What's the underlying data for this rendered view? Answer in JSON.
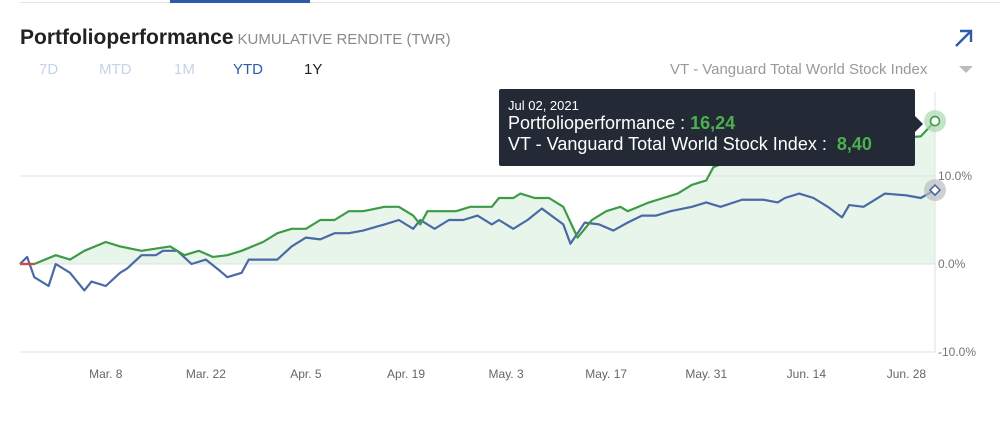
{
  "header": {
    "title": "Portfolioperformance",
    "subtitle": "KUMULATIVE RENDITE (TWR)",
    "benchmark": "VT - Vanguard Total World Stock Index",
    "expand_icon": "arrow-up-right-icon"
  },
  "ranges": [
    {
      "label": "7D",
      "color": "#c5d3e8"
    },
    {
      "label": "MTD",
      "color": "#c5d3e8"
    },
    {
      "label": "1M",
      "color": "#c5d3e8"
    },
    {
      "label": "YTD",
      "color": "#2f5aa8"
    },
    {
      "label": "1Y",
      "color": "#222222"
    }
  ],
  "selected_range": "YTD",
  "tooltip": {
    "date": "Jul 02, 2021",
    "portfolio_label": "Portfolioperformance :",
    "portfolio_value": "16,24",
    "benchmark_label": "VT - Vanguard Total World Stock Index :",
    "benchmark_value": "8,40"
  },
  "chart_data": {
    "type": "line",
    "ylim": [
      -10,
      10
    ],
    "y_ticks": [
      "10.0%",
      "0.0%",
      "-10.0%"
    ],
    "y_tick_values": [
      10,
      0,
      -10
    ],
    "x_range": [
      "2021-02-24",
      "2021-07-02"
    ],
    "x_ticks": [
      {
        "label": "Mar. 8",
        "date": "2021-03-08"
      },
      {
        "label": "Mar. 22",
        "date": "2021-03-22"
      },
      {
        "label": "Apr. 5",
        "date": "2021-04-05"
      },
      {
        "label": "Apr. 19",
        "date": "2021-04-19"
      },
      {
        "label": "May. 3",
        "date": "2021-05-03"
      },
      {
        "label": "May. 17",
        "date": "2021-05-17"
      },
      {
        "label": "May. 31",
        "date": "2021-05-31"
      },
      {
        "label": "Jun. 14",
        "date": "2021-06-14"
      },
      {
        "label": "Jun. 28",
        "date": "2021-06-28"
      }
    ],
    "grid": true,
    "series": [
      {
        "name": "Portfolioperformance",
        "color": "#3e9a47",
        "fill": "#e8f5ea",
        "points": [
          [
            "2021-02-24",
            0
          ],
          [
            "2021-02-26",
            0
          ],
          [
            "2021-03-01",
            1
          ],
          [
            "2021-03-03",
            0.5
          ],
          [
            "2021-03-05",
            1.5
          ],
          [
            "2021-03-08",
            2.5
          ],
          [
            "2021-03-10",
            2
          ],
          [
            "2021-03-13",
            1.5
          ],
          [
            "2021-03-17",
            2
          ],
          [
            "2021-03-19",
            1
          ],
          [
            "2021-03-21",
            1.5
          ],
          [
            "2021-03-23",
            0.8
          ],
          [
            "2021-03-25",
            1
          ],
          [
            "2021-03-27",
            1.5
          ],
          [
            "2021-03-30",
            2.5
          ],
          [
            "2021-04-01",
            3.5
          ],
          [
            "2021-04-03",
            4
          ],
          [
            "2021-04-05",
            4
          ],
          [
            "2021-04-07",
            5
          ],
          [
            "2021-04-09",
            5
          ],
          [
            "2021-04-11",
            6
          ],
          [
            "2021-04-13",
            6
          ],
          [
            "2021-04-16",
            6.5
          ],
          [
            "2021-04-18",
            6.5
          ],
          [
            "2021-04-20",
            5.5
          ],
          [
            "2021-04-21",
            4.5
          ],
          [
            "2021-04-22",
            6
          ],
          [
            "2021-04-24",
            6
          ],
          [
            "2021-04-26",
            6
          ],
          [
            "2021-04-28",
            6.5
          ],
          [
            "2021-05-01",
            6.5
          ],
          [
            "2021-05-02",
            7.5
          ],
          [
            "2021-05-04",
            7.5
          ],
          [
            "2021-05-05",
            8
          ],
          [
            "2021-05-07",
            7.5
          ],
          [
            "2021-05-09",
            7.5
          ],
          [
            "2021-05-11",
            6.5
          ],
          [
            "2021-05-13",
            3
          ],
          [
            "2021-05-15",
            5
          ],
          [
            "2021-05-17",
            6
          ],
          [
            "2021-05-19",
            6.5
          ],
          [
            "2021-05-20",
            6
          ],
          [
            "2021-05-23",
            7
          ],
          [
            "2021-05-25",
            7.5
          ],
          [
            "2021-05-27",
            8
          ],
          [
            "2021-05-29",
            9
          ],
          [
            "2021-05-31",
            9.5
          ],
          [
            "2021-06-01",
            11
          ],
          [
            "2021-06-04",
            12
          ],
          [
            "2021-06-09",
            13
          ],
          [
            "2021-06-14",
            13.5
          ],
          [
            "2021-06-22",
            14
          ],
          [
            "2021-06-30",
            14.5
          ],
          [
            "2021-07-02",
            16.24
          ]
        ]
      },
      {
        "name": "VT - Vanguard Total World Stock Index",
        "color": "#4a6aa5",
        "points": [
          [
            "2021-02-24",
            0
          ],
          [
            "2021-02-25",
            0.8
          ],
          [
            "2021-02-26",
            -1.5
          ],
          [
            "2021-02-28",
            -2.5
          ],
          [
            "2021-03-01",
            0
          ],
          [
            "2021-03-03",
            -1
          ],
          [
            "2021-03-05",
            -3
          ],
          [
            "2021-03-06",
            -2
          ],
          [
            "2021-03-08",
            -2.5
          ],
          [
            "2021-03-10",
            -1
          ],
          [
            "2021-03-11",
            -0.5
          ],
          [
            "2021-03-13",
            1
          ],
          [
            "2021-03-15",
            1
          ],
          [
            "2021-03-16",
            1.5
          ],
          [
            "2021-03-18",
            1.5
          ],
          [
            "2021-03-20",
            0
          ],
          [
            "2021-03-22",
            0.5
          ],
          [
            "2021-03-24",
            -0.8
          ],
          [
            "2021-03-25",
            -1.5
          ],
          [
            "2021-03-27",
            -1
          ],
          [
            "2021-03-28",
            0.5
          ],
          [
            "2021-03-30",
            0.5
          ],
          [
            "2021-04-01",
            0.5
          ],
          [
            "2021-04-03",
            2
          ],
          [
            "2021-04-05",
            3
          ],
          [
            "2021-04-07",
            2.8
          ],
          [
            "2021-04-09",
            3.5
          ],
          [
            "2021-04-11",
            3.5
          ],
          [
            "2021-04-13",
            3.8
          ],
          [
            "2021-04-16",
            4.5
          ],
          [
            "2021-04-18",
            5
          ],
          [
            "2021-04-20",
            4
          ],
          [
            "2021-04-21",
            5
          ],
          [
            "2021-04-23",
            4
          ],
          [
            "2021-04-25",
            5
          ],
          [
            "2021-04-27",
            5
          ],
          [
            "2021-04-29",
            5.5
          ],
          [
            "2021-05-01",
            4.5
          ],
          [
            "2021-05-02",
            5
          ],
          [
            "2021-05-04",
            4
          ],
          [
            "2021-05-06",
            5
          ],
          [
            "2021-05-08",
            6.3
          ],
          [
            "2021-05-11",
            4.5
          ],
          [
            "2021-05-12",
            2.3
          ],
          [
            "2021-05-14",
            4.7
          ],
          [
            "2021-05-16",
            4.5
          ],
          [
            "2021-05-18",
            3.8
          ],
          [
            "2021-05-20",
            4.7
          ],
          [
            "2021-05-22",
            5.5
          ],
          [
            "2021-05-24",
            5.5
          ],
          [
            "2021-05-26",
            6
          ],
          [
            "2021-05-29",
            6.5
          ],
          [
            "2021-05-31",
            7
          ],
          [
            "2021-06-02",
            6.5
          ],
          [
            "2021-06-05",
            7.3
          ],
          [
            "2021-06-08",
            7.3
          ],
          [
            "2021-06-10",
            7
          ],
          [
            "2021-06-11",
            7.5
          ],
          [
            "2021-06-13",
            8
          ],
          [
            "2021-06-15",
            7.5
          ],
          [
            "2021-06-17",
            6.5
          ],
          [
            "2021-06-19",
            5.3
          ],
          [
            "2021-06-20",
            6.7
          ],
          [
            "2021-06-22",
            6.5
          ],
          [
            "2021-06-25",
            8
          ],
          [
            "2021-06-28",
            7.8
          ],
          [
            "2021-06-30",
            7.5
          ],
          [
            "2021-07-02",
            8.4
          ]
        ]
      }
    ],
    "negative_start_color": "#d9453a"
  }
}
